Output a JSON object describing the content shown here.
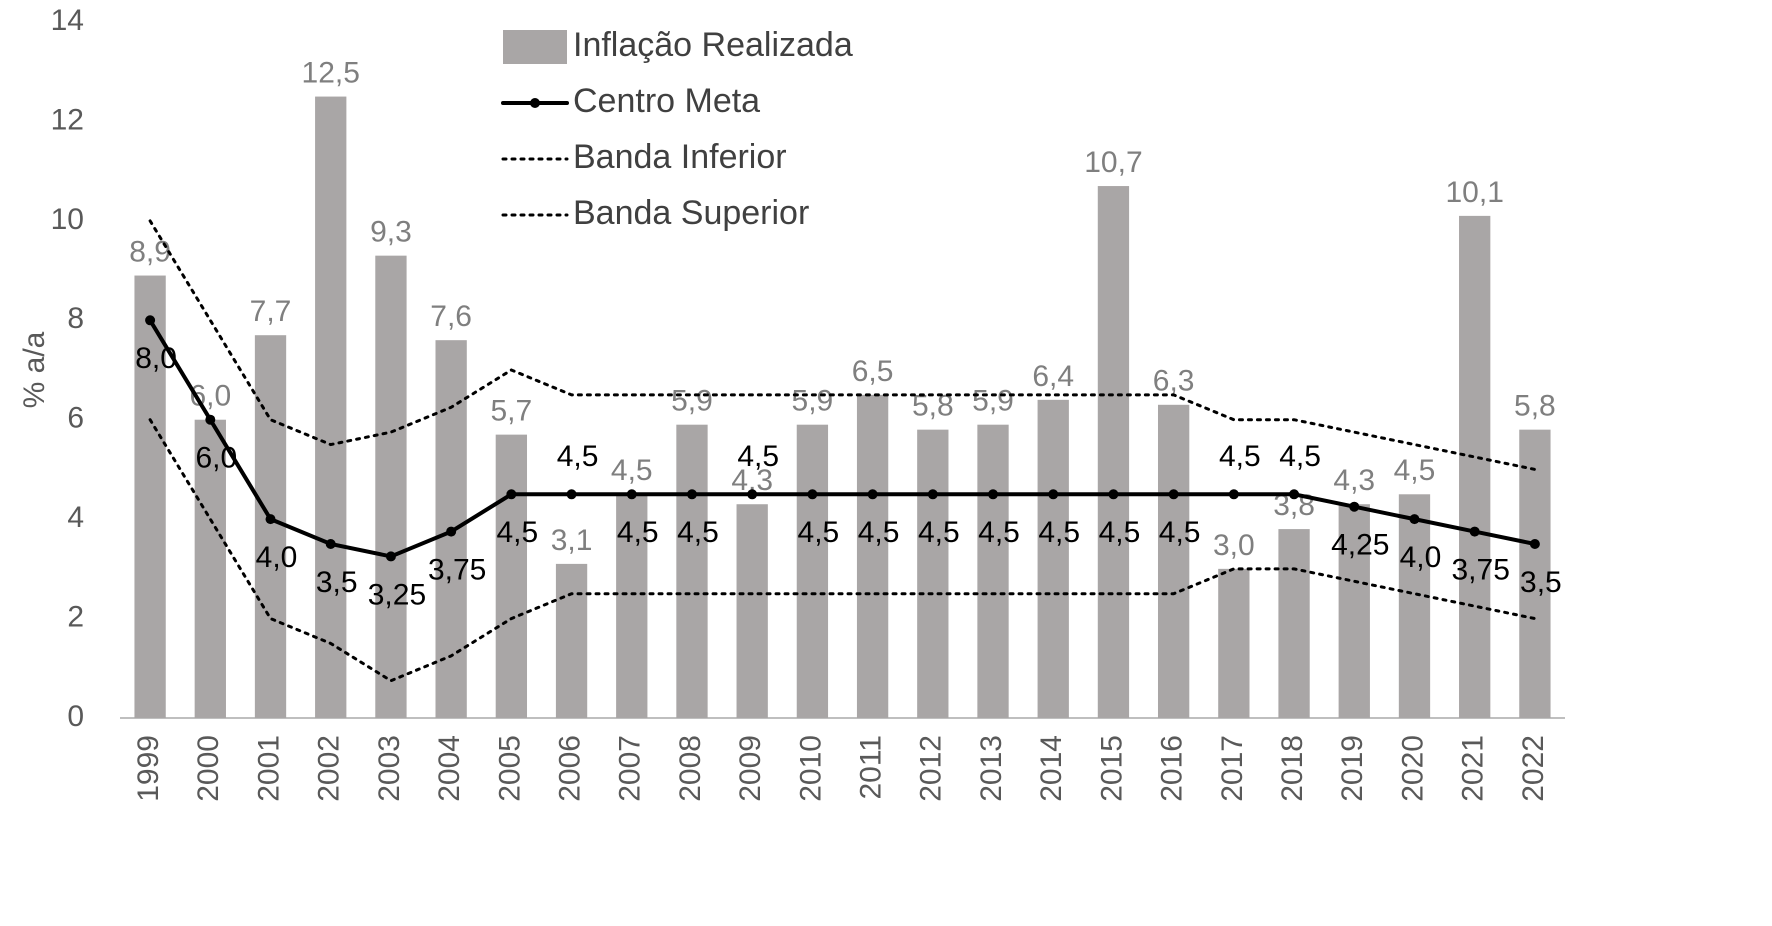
{
  "chart_data": {
    "type": "bar",
    "y_label": "% a/a",
    "categories": [
      "1999",
      "2000",
      "2001",
      "2002",
      "2003",
      "2004",
      "2005",
      "2006",
      "2007",
      "2008",
      "2009",
      "2010",
      "2011",
      "2012",
      "2013",
      "2014",
      "2015",
      "2016",
      "2017",
      "2018",
      "2019",
      "2020",
      "2021",
      "2022"
    ],
    "ylim": [
      0,
      14
    ],
    "yticks": [
      0,
      2,
      4,
      6,
      8,
      10,
      12,
      14
    ],
    "legend": "top",
    "series": [
      {
        "name": "Inflação Realizada",
        "type": "bar",
        "color": "#a9a6a6",
        "label_color": "#7f7f7f",
        "values": [
          8.9,
          6.0,
          7.7,
          12.5,
          9.3,
          7.6,
          5.7,
          3.1,
          4.5,
          5.9,
          4.3,
          5.9,
          6.5,
          5.8,
          5.9,
          6.4,
          10.7,
          6.3,
          3.0,
          3.8,
          4.3,
          4.5,
          10.1,
          5.8
        ],
        "value_labels": [
          "8,9",
          "6,0",
          "7,7",
          "12,5",
          "9,3",
          "7,6",
          "5,7",
          "3,1",
          "4,5",
          "5,9",
          "4,3",
          "5,9",
          "6,5",
          "5,8",
          "5,9",
          "6,4",
          "10,7",
          "6,3",
          "3,0",
          "3,8",
          "4,3",
          "4,5",
          "10,1",
          "5,8"
        ]
      },
      {
        "name": "Centro Meta",
        "type": "line",
        "color": "#000000",
        "line_style": "solid",
        "marker": true,
        "values": [
          8.0,
          6.0,
          4.0,
          3.5,
          3.25,
          3.75,
          4.5,
          4.5,
          4.5,
          4.5,
          4.5,
          4.5,
          4.5,
          4.5,
          4.5,
          4.5,
          4.5,
          4.5,
          4.5,
          4.5,
          4.25,
          4.0,
          3.75,
          3.5
        ],
        "value_labels": [
          "8,0",
          "6,0",
          "4,0",
          "3,5",
          "3,25",
          "3,75",
          "4,5",
          "4,5",
          "4,5",
          "4,5",
          "4,5",
          "4,5",
          "4,5",
          "4,5",
          "4,5",
          "4,5",
          "4,5",
          "4,5",
          "4,5",
          "4,5",
          "4,25",
          "4,0",
          "3,75",
          "3,5"
        ]
      },
      {
        "name": "Banda Inferior",
        "type": "line",
        "color": "#000000",
        "line_style": "dotted",
        "marker": false,
        "values": [
          6.0,
          4.0,
          2.0,
          1.5,
          0.75,
          1.25,
          2.0,
          2.5,
          2.5,
          2.5,
          2.5,
          2.5,
          2.5,
          2.5,
          2.5,
          2.5,
          2.5,
          2.5,
          3.0,
          3.0,
          2.75,
          2.5,
          2.25,
          2.0
        ]
      },
      {
        "name": "Banda Superior",
        "type": "line",
        "color": "#000000",
        "line_style": "dotted",
        "marker": false,
        "values": [
          10.0,
          8.0,
          6.0,
          5.5,
          5.75,
          6.25,
          7.0,
          6.5,
          6.5,
          6.5,
          6.5,
          6.5,
          6.5,
          6.5,
          6.5,
          6.5,
          6.5,
          6.5,
          6.0,
          6.0,
          5.75,
          5.5,
          5.25,
          5.0
        ]
      }
    ]
  }
}
